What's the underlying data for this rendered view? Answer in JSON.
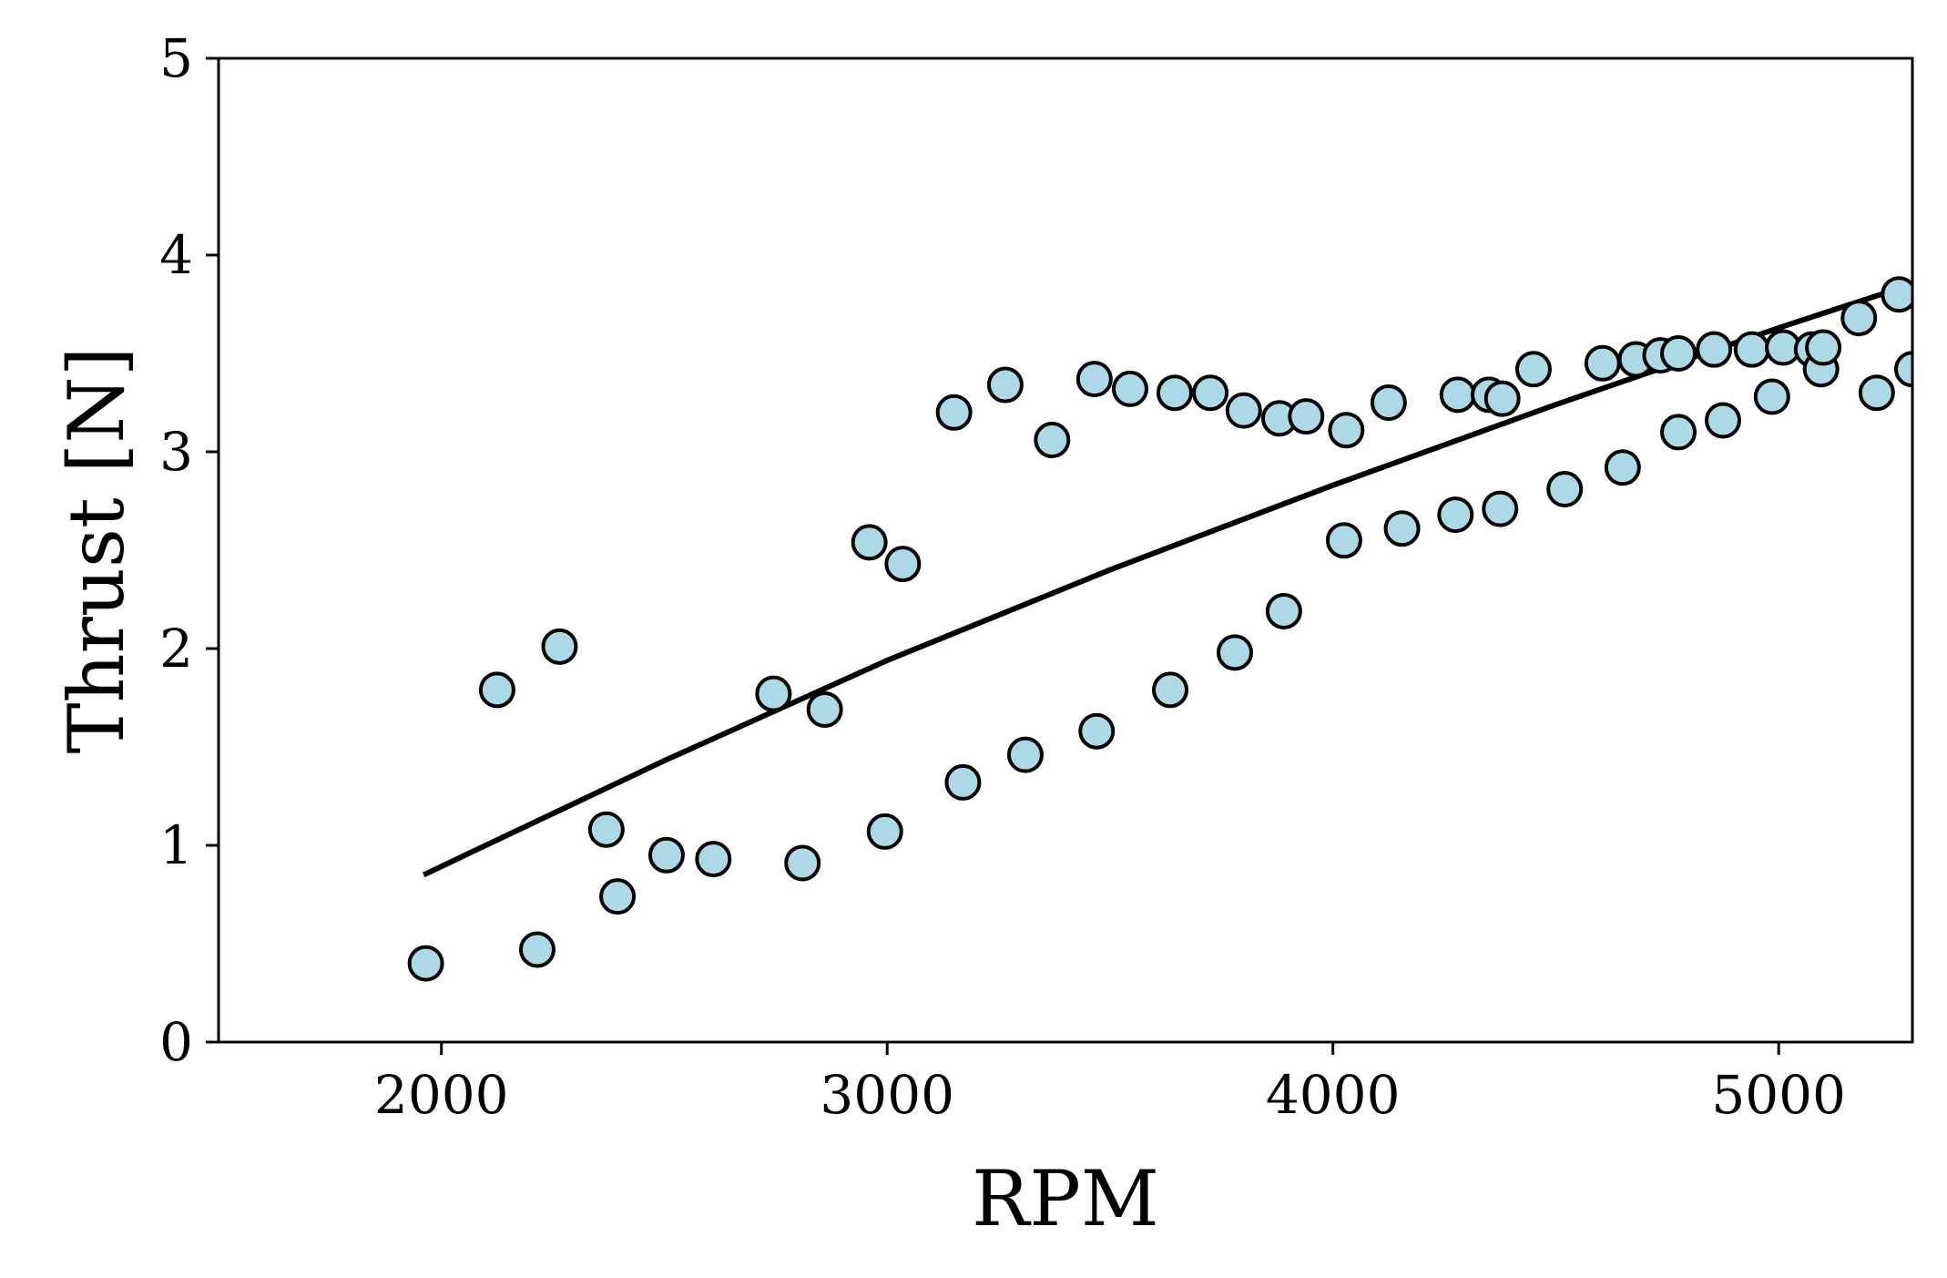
{
  "chart_data": {
    "type": "scatter",
    "xlabel": "RPM",
    "ylabel": "Thrust [N]",
    "xlim": [
      1500,
      5300
    ],
    "ylim": [
      0,
      5
    ],
    "xticks": [
      2000,
      3000,
      4000,
      5000
    ],
    "yticks": [
      0,
      1,
      2,
      3,
      4,
      5
    ],
    "grid": false,
    "colors": {
      "marker_fill": "#add8e6",
      "marker_edge": "#000000",
      "line": "#000000"
    },
    "series": [
      {
        "kind": "scatter",
        "points": [
          [
            1965,
            0.4
          ],
          [
            2125,
            1.79
          ],
          [
            2215,
            0.47
          ],
          [
            2265,
            2.01
          ],
          [
            2370,
            1.08
          ],
          [
            2395,
            0.74
          ],
          [
            2505,
            0.95
          ],
          [
            2610,
            0.93
          ],
          [
            2745,
            1.77
          ],
          [
            2810,
            0.91
          ],
          [
            2860,
            1.69
          ],
          [
            2960,
            2.54
          ],
          [
            2995,
            1.07
          ],
          [
            3035,
            2.43
          ],
          [
            3150,
            3.2
          ],
          [
            3170,
            1.32
          ],
          [
            3265,
            3.34
          ],
          [
            3310,
            1.46
          ],
          [
            3370,
            3.06
          ],
          [
            3465,
            3.37
          ],
          [
            3470,
            1.58
          ],
          [
            3545,
            3.32
          ],
          [
            3635,
            1.79
          ],
          [
            3645,
            3.3
          ],
          [
            3725,
            3.3
          ],
          [
            3780,
            1.98
          ],
          [
            3800,
            3.21
          ],
          [
            3880,
            3.17
          ],
          [
            3890,
            2.19
          ],
          [
            3940,
            3.18
          ],
          [
            4025,
            2.55
          ],
          [
            4030,
            3.11
          ],
          [
            4125,
            3.25
          ],
          [
            4155,
            2.61
          ],
          [
            4275,
            2.68
          ],
          [
            4280,
            3.29
          ],
          [
            4350,
            3.29
          ],
          [
            4375,
            2.71
          ],
          [
            4380,
            3.27
          ],
          [
            4450,
            3.42
          ],
          [
            4520,
            2.81
          ],
          [
            4605,
            3.45
          ],
          [
            4650,
            2.92
          ],
          [
            4680,
            3.47
          ],
          [
            4735,
            3.49
          ],
          [
            4775,
            3.1
          ],
          [
            4775,
            3.5
          ],
          [
            4855,
            3.52
          ],
          [
            4875,
            3.16
          ],
          [
            4940,
            3.52
          ],
          [
            4985,
            3.28
          ],
          [
            5010,
            3.53
          ],
          [
            5075,
            3.52
          ],
          [
            5095,
            3.42
          ],
          [
            5100,
            3.53
          ],
          [
            5180,
            3.68
          ],
          [
            5220,
            3.3
          ],
          [
            5270,
            3.8
          ],
          [
            5300,
            3.42
          ]
        ]
      },
      {
        "kind": "line",
        "points": [
          [
            1960,
            0.85
          ],
          [
            2500,
            1.43
          ],
          [
            3000,
            1.94
          ],
          [
            3500,
            2.4
          ],
          [
            4000,
            2.83
          ],
          [
            4500,
            3.24
          ],
          [
            5000,
            3.63
          ],
          [
            5270,
            3.83
          ]
        ]
      }
    ]
  }
}
